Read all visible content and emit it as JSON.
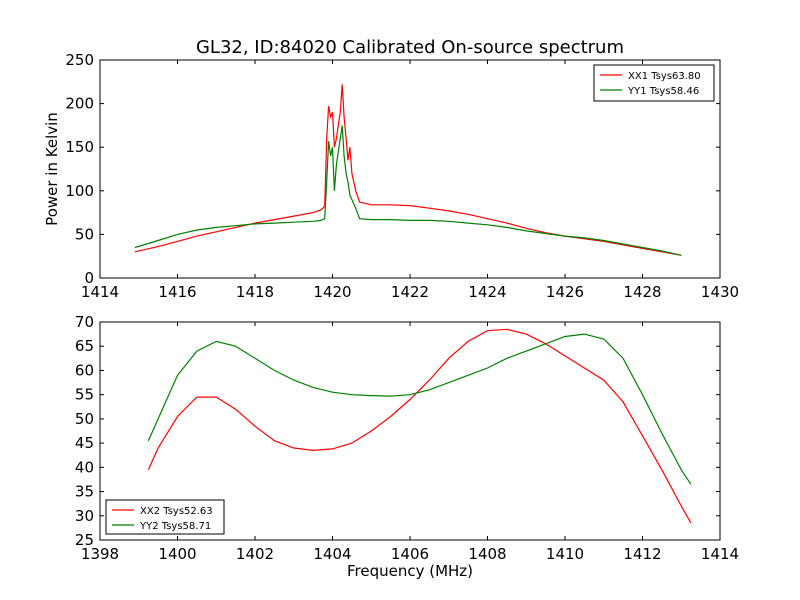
{
  "figure": {
    "title": "GL32, ID:84020 Calibrated On-source spectrum",
    "background": "#ffffff"
  },
  "chart_data": [
    {
      "type": "line",
      "title": "GL32, ID:84020 Calibrated On-source spectrum",
      "xlabel": "",
      "ylabel": "Power in Kelvin",
      "xlim": [
        1414,
        1430
      ],
      "ylim": [
        0,
        250
      ],
      "xticks": [
        1414,
        1416,
        1418,
        1420,
        1422,
        1424,
        1426,
        1428,
        1430
      ],
      "yticks": [
        0,
        50,
        100,
        150,
        200,
        250
      ],
      "grid": false,
      "legend_position": "top-right",
      "series": [
        {
          "name": "XX1 Tsys63.80",
          "color": "#ff0000",
          "x": [
            1414.9,
            1415.5,
            1416.0,
            1416.5,
            1417.0,
            1417.5,
            1418.0,
            1418.5,
            1419.0,
            1419.5,
            1419.7,
            1419.8,
            1419.85,
            1419.9,
            1419.95,
            1420.0,
            1420.05,
            1420.1,
            1420.15,
            1420.2,
            1420.25,
            1420.3,
            1420.35,
            1420.4,
            1420.45,
            1420.5,
            1420.6,
            1420.7,
            1421.0,
            1421.5,
            1422.0,
            1422.5,
            1423.0,
            1423.5,
            1424.0,
            1424.5,
            1425.0,
            1425.5,
            1426.0,
            1426.5,
            1427.0,
            1427.5,
            1428.0,
            1428.5,
            1429.0
          ],
          "y": [
            30,
            36,
            42,
            48,
            53,
            58,
            63,
            67,
            71,
            75,
            78,
            82,
            160,
            197,
            185,
            190,
            150,
            160,
            175,
            190,
            222,
            185,
            160,
            135,
            150,
            120,
            100,
            87,
            84,
            84,
            83,
            80,
            77,
            73,
            68,
            63,
            57,
            52,
            48,
            45,
            42,
            38,
            34,
            30,
            26
          ]
        },
        {
          "name": "YY1 Tsys58.46",
          "color": "#008000",
          "x": [
            1414.9,
            1415.5,
            1416.0,
            1416.5,
            1417.0,
            1417.5,
            1418.0,
            1418.5,
            1419.0,
            1419.5,
            1419.7,
            1419.8,
            1419.85,
            1419.9,
            1419.95,
            1420.0,
            1420.05,
            1420.1,
            1420.15,
            1420.2,
            1420.25,
            1420.3,
            1420.35,
            1420.4,
            1420.45,
            1420.5,
            1420.6,
            1420.7,
            1421.0,
            1421.5,
            1422.0,
            1422.5,
            1423.0,
            1423.5,
            1424.0,
            1424.5,
            1425.0,
            1425.5,
            1426.0,
            1426.5,
            1427.0,
            1427.5,
            1428.0,
            1428.5,
            1429.0
          ],
          "y": [
            35,
            43,
            50,
            55,
            58,
            60,
            62,
            63,
            64,
            65,
            66,
            68,
            110,
            157,
            140,
            150,
            100,
            130,
            145,
            160,
            175,
            140,
            120,
            110,
            95,
            90,
            80,
            68,
            67,
            67,
            66,
            66,
            65,
            63,
            61,
            58,
            54,
            51,
            48,
            46,
            43,
            39,
            35,
            31,
            26
          ]
        }
      ]
    },
    {
      "type": "line",
      "title": "",
      "xlabel": "Frequency (MHz)",
      "ylabel": "",
      "xlim": [
        1398,
        1414
      ],
      "ylim": [
        25,
        70
      ],
      "xticks": [
        1398,
        1400,
        1402,
        1404,
        1406,
        1408,
        1410,
        1412,
        1414
      ],
      "yticks": [
        25,
        30,
        35,
        40,
        45,
        50,
        55,
        60,
        65,
        70
      ],
      "grid": false,
      "legend_position": "bottom-left",
      "series": [
        {
          "name": "XX2 Tsys52.63",
          "color": "#ff0000",
          "x": [
            1399.25,
            1399.5,
            1400.0,
            1400.5,
            1401.0,
            1401.5,
            1402.0,
            1402.5,
            1403.0,
            1403.5,
            1404.0,
            1404.5,
            1405.0,
            1405.5,
            1406.0,
            1406.5,
            1407.0,
            1407.5,
            1408.0,
            1408.5,
            1409.0,
            1409.5,
            1410.0,
            1410.5,
            1411.0,
            1411.5,
            1412.0,
            1412.5,
            1413.0,
            1413.25
          ],
          "y": [
            39.5,
            44,
            50.5,
            54.5,
            54.5,
            52,
            48.5,
            45.5,
            44,
            43.5,
            43.8,
            45,
            47.5,
            50.5,
            54,
            58,
            62.5,
            66,
            68.2,
            68.5,
            67.5,
            65.5,
            63,
            60.5,
            58,
            53.5,
            46.5,
            39.5,
            32,
            28.5
          ]
        },
        {
          "name": "YY2 Tsys58.71",
          "color": "#008000",
          "x": [
            1399.25,
            1399.5,
            1400.0,
            1400.5,
            1401.0,
            1401.5,
            1402.0,
            1402.5,
            1403.0,
            1403.5,
            1404.0,
            1404.5,
            1405.0,
            1405.5,
            1406.0,
            1406.5,
            1407.0,
            1407.5,
            1408.0,
            1408.5,
            1409.0,
            1409.5,
            1410.0,
            1410.5,
            1411.0,
            1411.5,
            1412.0,
            1412.5,
            1413.0,
            1413.25
          ],
          "y": [
            45.5,
            50,
            59,
            64,
            66,
            65,
            62.5,
            60,
            58,
            56.5,
            55.5,
            55,
            54.8,
            54.7,
            55,
            56,
            57.5,
            59,
            60.5,
            62.5,
            64,
            65.5,
            67,
            67.5,
            66.5,
            62.5,
            55,
            47,
            39.5,
            36.5
          ]
        }
      ]
    }
  ]
}
